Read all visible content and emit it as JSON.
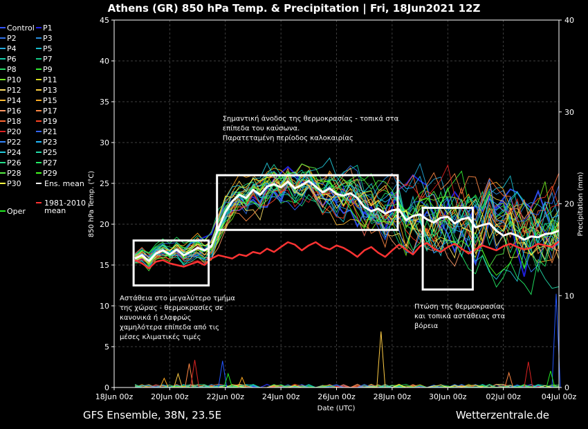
{
  "chart_data": {
    "type": "line",
    "title": "Athens  (GR)  850 hPa Temp. & Precipitation | Fri, 18Jun2021 12Z",
    "xlabel": "Date (UTC)",
    "ylabel": "850 hPa Temp. (°C)",
    "ylabel_right": "Precipitation (mm)",
    "xlim": [
      0,
      16
    ],
    "ylim": [
      0,
      45
    ],
    "ylim_right": [
      0,
      40
    ],
    "x_ticks": [
      0,
      2,
      4,
      6,
      8,
      10,
      12,
      14,
      16
    ],
    "x_tick_labels": [
      "18Jun 00z",
      "20Jun 00z",
      "22Jun 00z",
      "24Jun 00z",
      "26Jun 00z",
      "28Jun 00z",
      "30Jun 00z",
      "02Jul 00z",
      "04Jul 00z"
    ],
    "y_ticks": [
      0,
      5,
      10,
      15,
      20,
      25,
      30,
      35,
      40,
      45
    ],
    "y_ticks_right": [
      0,
      10,
      20,
      30,
      40
    ],
    "grid": true,
    "legend_placement": "left outside",
    "footer_left": "GFS Ensemble, 38N, 23.5E",
    "footer_right": "Wetterzentrale.de",
    "legend": [
      {
        "name": "Control",
        "color": "#3355ff"
      },
      {
        "name": "P1",
        "color": "#2222ee"
      },
      {
        "name": "P2",
        "color": "#2f6fe8"
      },
      {
        "name": "P3",
        "color": "#2a8fe0"
      },
      {
        "name": "P4",
        "color": "#22aadd"
      },
      {
        "name": "P5",
        "color": "#18c0d0"
      },
      {
        "name": "P6",
        "color": "#11ccaa"
      },
      {
        "name": "P7",
        "color": "#11cc88"
      },
      {
        "name": "P8",
        "color": "#22dd66"
      },
      {
        "name": "P9",
        "color": "#33ee33"
      },
      {
        "name": "P10",
        "color": "#77ee22"
      },
      {
        "name": "P11",
        "color": "#dddd22"
      },
      {
        "name": "P12",
        "color": "#ffe066"
      },
      {
        "name": "P13",
        "color": "#ffd040"
      },
      {
        "name": "P14",
        "color": "#ffbb33"
      },
      {
        "name": "P15",
        "color": "#ffaa22"
      },
      {
        "name": "P16",
        "color": "#ff9966"
      },
      {
        "name": "P17",
        "color": "#ff8844"
      },
      {
        "name": "P18",
        "color": "#ff6633"
      },
      {
        "name": "P19",
        "color": "#ff4422"
      },
      {
        "name": "P20",
        "color": "#dd2222"
      },
      {
        "name": "P21",
        "color": "#3366ff"
      },
      {
        "name": "P22",
        "color": "#3388ff"
      },
      {
        "name": "P23",
        "color": "#22bbff"
      },
      {
        "name": "P24",
        "color": "#22ccdd"
      },
      {
        "name": "P25",
        "color": "#22ddaa"
      },
      {
        "name": "P26",
        "color": "#22dd88"
      },
      {
        "name": "P27",
        "color": "#22ee66"
      },
      {
        "name": "P28",
        "color": "#55ee44"
      },
      {
        "name": "P29",
        "color": "#44ff22"
      },
      {
        "name": "P30",
        "color": "#ffff44"
      },
      {
        "name": "Ens. mean",
        "color": "#ffffff"
      },
      {
        "name": "Oper",
        "color": "#22ee22"
      },
      {
        "name": "1981-2010 mean",
        "color": "#ff3333"
      }
    ],
    "annotations": [
      {
        "x": 0,
        "y": 11,
        "lines": [
          "Αστάθεια στο μεγαλύτερο τμήμα",
          "της χώρας - θερμοκρασίες σε",
          "κανονικά ή ελαφρώς",
          "χαμηλότερα επίπεδα από τις",
          "μέσες κλιματικές τιμές"
        ]
      },
      {
        "x": 3.7,
        "y": 33,
        "lines": [
          "Σημαντική άνοδος της θερμοκρασίας - τοπικά στα",
          "επίπεδα του καύσωνα.",
          "Παρατεταμένη περίοδος καλοκαιρίας"
        ]
      },
      {
        "x": 10.6,
        "y": 10,
        "lines": [
          "Πτώση της θερμοκρασίας",
          "και τοπικά αστάθειας στα",
          "βόρεια"
        ]
      }
    ],
    "boxes": [
      {
        "x0": 0.7,
        "x1": 3.4,
        "y0": 12.5,
        "y1": 18
      },
      {
        "x0": 3.7,
        "x1": 10.2,
        "y0": 19.3,
        "y1": 26
      },
      {
        "x0": 11.1,
        "x1": 12.9,
        "y0": 12,
        "y1": 22
      }
    ],
    "series": [
      {
        "name": "Ens. mean",
        "color": "#ffffff",
        "width": 3,
        "x": [
          0.75,
          1,
          1.25,
          1.5,
          1.75,
          2,
          2.25,
          2.5,
          2.75,
          3,
          3.25,
          3.5,
          3.75,
          4,
          4.25,
          4.5,
          4.75,
          5,
          5.25,
          5.5,
          5.75,
          6,
          6.25,
          6.5,
          6.75,
          7,
          7.25,
          7.5,
          7.75,
          8,
          8.25,
          8.5,
          8.75,
          9,
          9.25,
          9.5,
          9.75,
          10,
          10.25,
          10.5,
          10.75,
          11,
          11.25,
          11.5,
          11.75,
          12,
          12.25,
          12.5,
          12.75,
          13,
          13.25,
          13.5,
          13.75,
          14,
          14.25,
          14.5,
          14.75,
          15,
          15.25,
          15.5,
          15.75,
          16
        ],
        "y": [
          15.8,
          16.2,
          15.5,
          16.4,
          16.8,
          16.3,
          16.9,
          16.2,
          16.6,
          17.1,
          16.8,
          17.3,
          19.5,
          21.5,
          22.8,
          23.6,
          23.2,
          24.2,
          23.6,
          24.6,
          24.9,
          24.5,
          25.2,
          24.4,
          24.8,
          25.3,
          24.6,
          23.9,
          24.4,
          23.7,
          23.5,
          23.8,
          23.2,
          22.1,
          21.6,
          21.9,
          21.3,
          21.7,
          21.8,
          20.5,
          21.0,
          21.2,
          20.6,
          20.2,
          20.8,
          20.9,
          20.1,
          20.6,
          20.8,
          19.6,
          19.9,
          20.1,
          19.2,
          18.6,
          18.9,
          18.6,
          18.1,
          18.5,
          18.4,
          18.8,
          18.9,
          19.2
        ]
      },
      {
        "name": "1981-2010 mean",
        "color": "#ff3333",
        "width": 2.5,
        "x": [
          0.75,
          1,
          1.25,
          1.5,
          1.75,
          2,
          2.25,
          2.5,
          2.75,
          3,
          3.25,
          3.5,
          3.75,
          4,
          4.25,
          4.5,
          4.75,
          5,
          5.25,
          5.5,
          5.75,
          6,
          6.25,
          6.5,
          6.75,
          7,
          7.25,
          7.5,
          7.75,
          8,
          8.25,
          8.5,
          8.75,
          9,
          9.25,
          9.5,
          9.75,
          10,
          10.25,
          10.5,
          10.75,
          11,
          11.25,
          11.5,
          11.75,
          12,
          12.25,
          12.5,
          12.75,
          13,
          13.25,
          13.5,
          13.75,
          14,
          14.25,
          14.5,
          14.75,
          15,
          15.25,
          15.5,
          15.75,
          16
        ],
        "y": [
          15.6,
          15.2,
          14.6,
          15.4,
          15.6,
          15.2,
          15.0,
          14.8,
          15.1,
          15.4,
          15.0,
          15.8,
          16.2,
          16.0,
          15.8,
          16.3,
          16.1,
          16.6,
          16.4,
          17.0,
          16.6,
          17.2,
          17.8,
          17.5,
          16.8,
          17.4,
          17.8,
          17.2,
          16.9,
          17.4,
          17.1,
          16.6,
          16.0,
          16.8,
          17.2,
          16.5,
          16.0,
          16.8,
          17.5,
          16.9,
          16.3,
          17.3,
          17.7,
          17.0,
          16.6,
          17.2,
          17.6,
          17.0,
          16.4,
          16.9,
          17.4,
          17.1,
          16.8,
          17.3,
          17.6,
          17.2,
          16.9,
          17.1,
          17.6,
          17.4,
          17.2,
          17.9
        ]
      }
    ],
    "members_band": {
      "x": [
        0.75,
        1,
        1.25,
        1.5,
        1.75,
        2,
        2.25,
        2.5,
        2.75,
        3,
        3.25,
        3.5,
        3.75,
        4,
        4.25,
        4.5,
        4.75,
        5,
        5.25,
        5.5,
        5.75,
        6,
        6.25,
        6.5,
        6.75,
        7,
        7.25,
        7.5,
        7.75,
        8,
        8.25,
        8.5,
        8.75,
        9,
        9.25,
        9.5,
        9.75,
        10,
        10.25,
        10.5,
        10.75,
        11,
        11.25,
        11.5,
        11.75,
        12,
        12.25,
        12.5,
        12.75,
        13,
        13.25,
        13.5,
        13.75,
        14,
        14.25,
        14.5,
        14.75,
        15,
        15.25,
        15.5,
        15.75,
        16
      ],
      "spread": [
        0.8,
        1.0,
        1.2,
        1.3,
        1.4,
        1.5,
        1.5,
        1.6,
        1.7,
        1.8,
        2.0,
        2.2,
        2.5,
        2.7,
        2.8,
        2.9,
        3.0,
        3.0,
        3.1,
        3.2,
        3.2,
        3.2,
        3.3,
        3.3,
        3.4,
        3.4,
        3.5,
        3.6,
        3.7,
        3.8,
        4.0,
        4.2,
        4.4,
        4.6,
        4.8,
        5.0,
        5.2,
        5.4,
        5.6,
        5.8,
        6.0,
        6.2,
        6.3,
        6.4,
        6.5,
        6.6,
        6.6,
        6.7,
        6.8,
        6.8,
        6.8,
        6.9,
        6.9,
        7.0,
        7.0,
        7.0,
        7.1,
        7.1,
        7.1,
        7.2,
        7.2,
        7.2
      ]
    },
    "precip_spikes": [
      {
        "x": 1.8,
        "y": 1.0
      },
      {
        "x": 2.3,
        "y": 1.5
      },
      {
        "x": 2.7,
        "y": 2.6
      },
      {
        "x": 2.9,
        "y": 3.0
      },
      {
        "x": 3.9,
        "y": 2.9
      },
      {
        "x": 4.1,
        "y": 1.5
      },
      {
        "x": 4.6,
        "y": 1.1
      },
      {
        "x": 9.6,
        "y": 6.1
      },
      {
        "x": 14.2,
        "y": 1.6
      },
      {
        "x": 14.9,
        "y": 2.8
      },
      {
        "x": 15.9,
        "y": 10.2
      },
      {
        "x": 15.7,
        "y": 1.8
      }
    ]
  }
}
